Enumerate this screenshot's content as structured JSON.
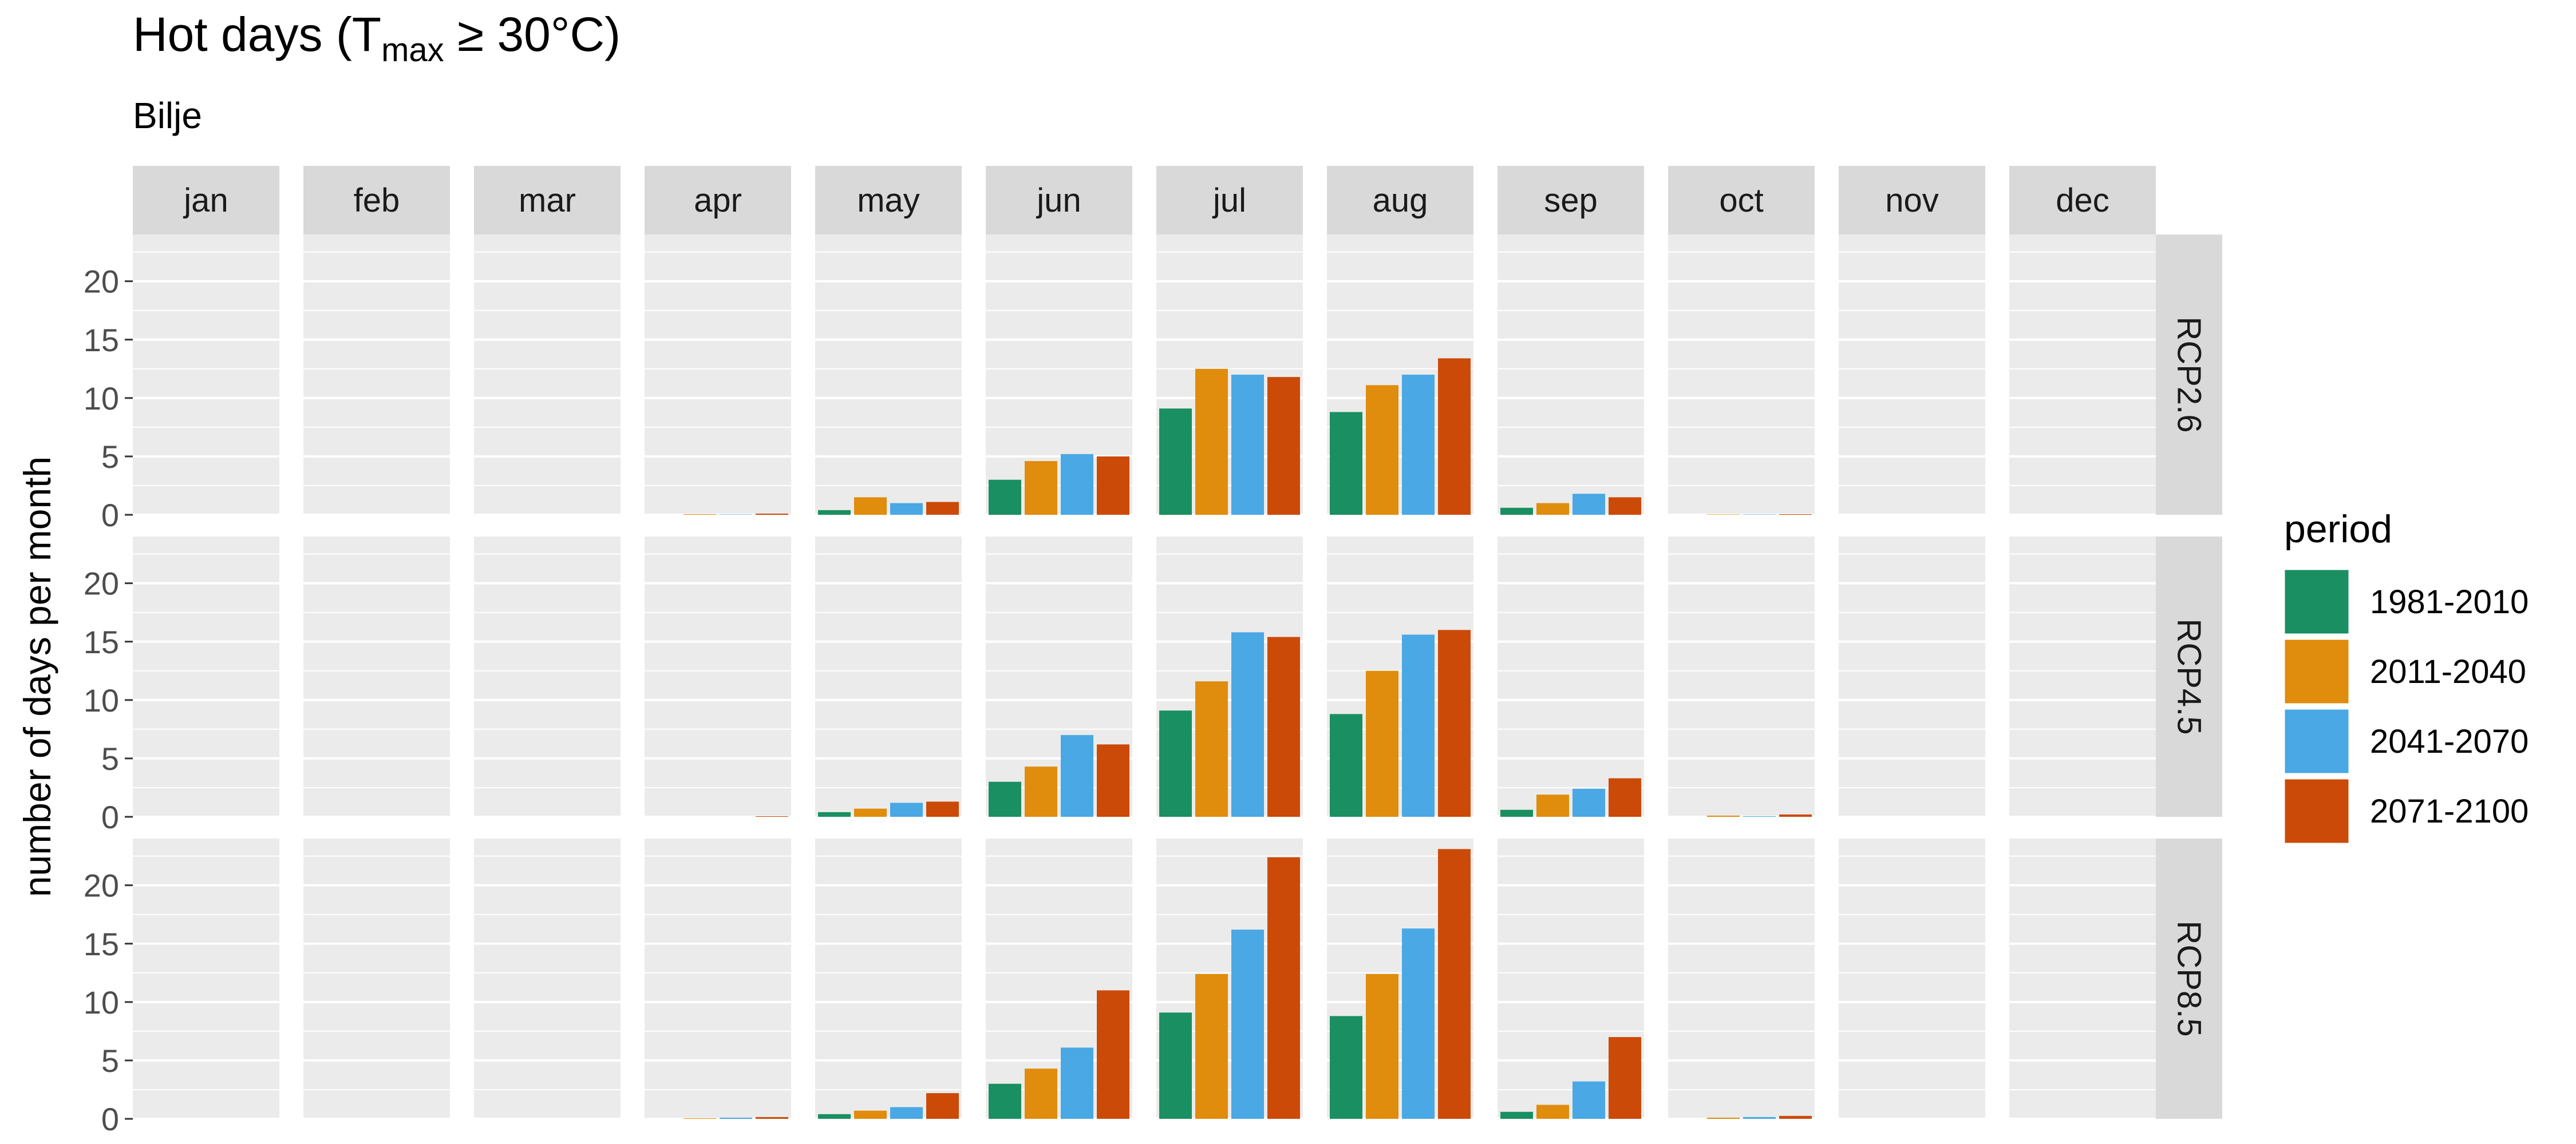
{
  "title": {
    "main": "Hot days (T",
    "sub": "max",
    "tail": " ≥ 30°C)"
  },
  "subtitle": "Bilje",
  "chart_data": {
    "type": "bar",
    "facet_columns": [
      "jan",
      "feb",
      "mar",
      "apr",
      "may",
      "jun",
      "jul",
      "aug",
      "sep",
      "oct",
      "nov",
      "dec"
    ],
    "facet_rows": [
      "RCP2.6",
      "RCP4.5",
      "RCP8.5"
    ],
    "ylabel": "number of days per month",
    "xlabel": "",
    "ylim": [
      0,
      24
    ],
    "yticks": [
      0,
      5,
      10,
      15,
      20
    ],
    "grid": true,
    "legend": {
      "title": "period",
      "placement": "right"
    },
    "series": [
      {
        "name": "1981-2010",
        "color": "#1a8f61",
        "values": {
          "RCP2.6": [
            0,
            0,
            0,
            0,
            0.4,
            3.0,
            9.1,
            8.8,
            0.6,
            0,
            0,
            0
          ],
          "RCP4.5": [
            0,
            0,
            0,
            0,
            0.4,
            3.0,
            9.1,
            8.8,
            0.6,
            0,
            0,
            0
          ],
          "RCP8.5": [
            0,
            0,
            0,
            0,
            0.4,
            3.0,
            9.1,
            8.8,
            0.6,
            0,
            0,
            0
          ]
        }
      },
      {
        "name": "2011-2040",
        "color": "#e08c0c",
        "values": {
          "RCP2.6": [
            0,
            0,
            0,
            0.05,
            1.5,
            4.6,
            12.5,
            11.1,
            1.0,
            0.03,
            0,
            0
          ],
          "RCP4.5": [
            0,
            0,
            0,
            0,
            0.7,
            4.3,
            11.6,
            12.5,
            1.9,
            0.1,
            0,
            0
          ],
          "RCP8.5": [
            0,
            0,
            0,
            0.05,
            0.7,
            4.3,
            12.4,
            12.4,
            1.2,
            0.1,
            0,
            0
          ]
        }
      },
      {
        "name": "2041-2070",
        "color": "#4aa8e4",
        "values": {
          "RCP2.6": [
            0,
            0,
            0,
            0.03,
            1.0,
            5.2,
            12.0,
            12.0,
            1.8,
            0.03,
            0,
            0
          ],
          "RCP4.5": [
            0,
            0,
            0,
            0,
            1.2,
            7.0,
            15.8,
            15.6,
            2.4,
            0.05,
            0,
            0
          ],
          "RCP8.5": [
            0,
            0,
            0,
            0.1,
            1.0,
            6.1,
            16.2,
            16.3,
            3.2,
            0.15,
            0,
            0
          ]
        }
      },
      {
        "name": "2071-2100",
        "color": "#cc4a08",
        "values": {
          "RCP2.6": [
            0,
            0,
            0,
            0.1,
            1.1,
            5.0,
            11.8,
            13.4,
            1.5,
            0.05,
            0,
            0
          ],
          "RCP4.5": [
            0,
            0,
            0,
            0.05,
            1.3,
            6.2,
            15.4,
            16.0,
            3.3,
            0.2,
            0,
            0
          ],
          "RCP8.5": [
            0,
            0,
            0,
            0.15,
            2.2,
            11.0,
            22.4,
            23.1,
            7.0,
            0.25,
            0,
            0
          ]
        }
      }
    ]
  }
}
